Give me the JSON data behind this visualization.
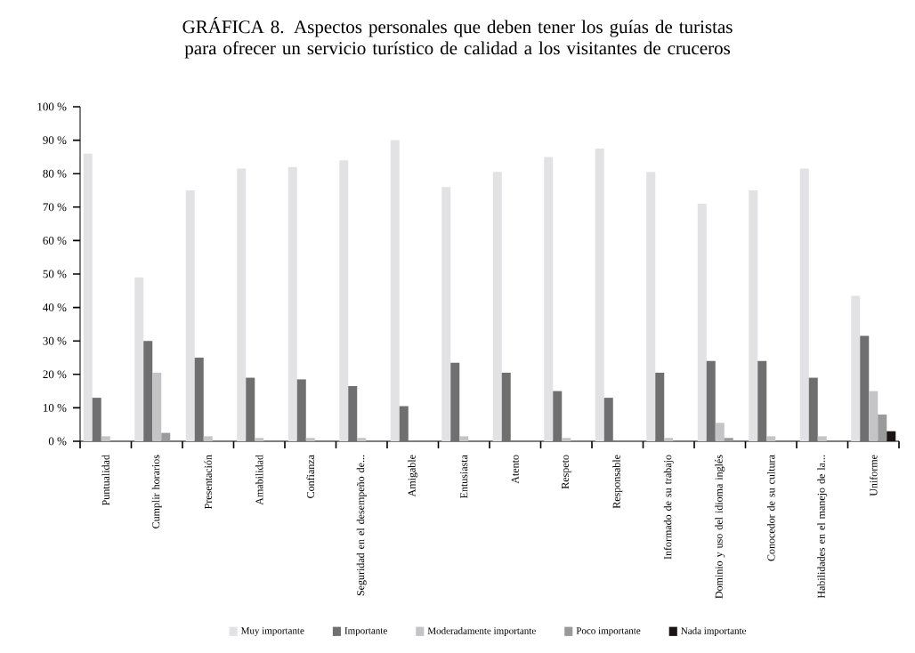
{
  "chart_data": {
    "type": "bar",
    "title": "GRÁFICA 8. Aspectos personales que deben tener los guías de turistas para ofrecer un servicio turístico de calidad a los visitantes de cruceros",
    "categories": [
      "Puntualidad",
      "Cumplir horarios",
      "Presentación",
      "Amabilidad",
      "Confianza",
      "Seguridad en el desempeño de...",
      "Amigable",
      "Entusiasta",
      "Atento",
      "Respeto",
      "Responsable",
      "Informado de su trabajo",
      "Dominio y uso del idioma inglés",
      "Conocedor de su cultura",
      "Habilidades en el manejo de la...",
      "Uniforme"
    ],
    "series": [
      {
        "name": "Muy importante",
        "color": "#e2e2e4",
        "values": [
          86,
          49,
          75,
          81.5,
          82,
          84,
          90,
          76,
          80.5,
          85,
          87.5,
          80.5,
          71,
          75,
          81.5,
          43.5
        ]
      },
      {
        "name": "Importante",
        "color": "#6f6f70",
        "values": [
          13,
          30,
          25,
          19,
          18.5,
          16.5,
          10.5,
          23.5,
          20.5,
          15,
          13,
          20.5,
          24,
          24,
          19,
          31.5
        ]
      },
      {
        "name": "Moderadamente importante",
        "color": "#c4c4c6",
        "values": [
          1.5,
          20.5,
          1.5,
          1,
          1,
          1,
          0,
          1.5,
          0,
          1,
          0,
          1,
          5.5,
          1.5,
          1.5,
          15
        ]
      },
      {
        "name": "Poco importante",
        "color": "#9a9a9a",
        "values": [
          0,
          2.5,
          0,
          0,
          0,
          0,
          0,
          0,
          0,
          0,
          0,
          0,
          1,
          0,
          0,
          8
        ]
      },
      {
        "name": "Nada importante",
        "color": "#1a1414",
        "values": [
          0,
          0,
          0,
          0,
          0,
          0,
          0,
          0,
          0,
          0,
          0,
          0,
          0,
          0,
          0,
          3
        ]
      }
    ],
    "ylim": [
      0,
      100
    ],
    "yticks": [
      {
        "value": 0,
        "label": "0 %"
      },
      {
        "value": 10,
        "label": "10 %"
      },
      {
        "value": 20,
        "label": "20 %"
      },
      {
        "value": 30,
        "label": "30 %"
      },
      {
        "value": 40,
        "label": "40 %"
      },
      {
        "value": 50,
        "label": "50 %"
      },
      {
        "value": 60,
        "label": "60 %"
      },
      {
        "value": 70,
        "label": "70 %"
      },
      {
        "value": 80,
        "label": "80 %"
      },
      {
        "value": 90,
        "label": "90 %"
      },
      {
        "value": 100,
        "label": "100 %"
      }
    ],
    "grid": false,
    "legend": "bottom"
  }
}
